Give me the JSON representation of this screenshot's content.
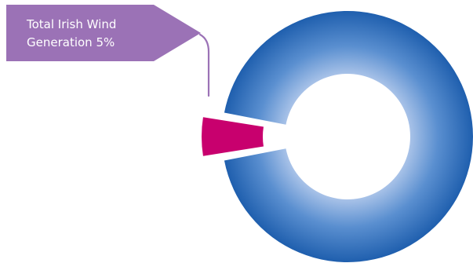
{
  "chart_data": {
    "type": "pie",
    "style": "donut",
    "slices": [
      {
        "label": "Total Irish Wind Generation",
        "value": 5,
        "color": "#c8006e",
        "exploded": true
      },
      {
        "label": "",
        "value": 95,
        "color": "#1f5fae",
        "exploded": false
      }
    ],
    "annotations": [
      {
        "lines": [
          "Total Irish Wind",
          "Generation 5%"
        ],
        "slice_index": 0,
        "color": "#9b72b6"
      }
    ]
  }
}
